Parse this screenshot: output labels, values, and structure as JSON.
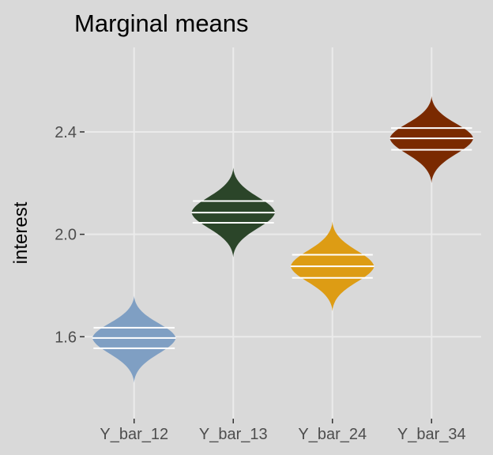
{
  "chart_data": {
    "type": "violin",
    "title": "Marginal means",
    "xlabel": "",
    "ylabel": "interest",
    "ylim": [
      1.28,
      2.73
    ],
    "y_ticks": [
      1.6,
      2.0,
      2.4
    ],
    "y_tick_labels": [
      "1.6",
      "2.0",
      "2.4"
    ],
    "grid": true,
    "legend": "none",
    "categories": [
      "Y_bar_12",
      "Y_bar_13",
      "Y_bar_24",
      "Y_bar_34"
    ],
    "series": [
      {
        "category": "Y_bar_12",
        "center": 1.595,
        "quantiles": [
          1.555,
          1.595,
          1.635
        ],
        "min": 1.42,
        "max": 1.76,
        "color": "#7f9fc3"
      },
      {
        "category": "Y_bar_13",
        "center": 2.085,
        "quantiles": [
          2.045,
          2.085,
          2.13
        ],
        "min": 1.91,
        "max": 2.26,
        "color": "#2b4529"
      },
      {
        "category": "Y_bar_24",
        "center": 1.875,
        "quantiles": [
          1.83,
          1.875,
          1.92
        ],
        "min": 1.7,
        "max": 2.05,
        "color": "#dd9c14"
      },
      {
        "category": "Y_bar_34",
        "center": 2.375,
        "quantiles": [
          2.33,
          2.375,
          2.415
        ],
        "min": 2.2,
        "max": 2.54,
        "color": "#7a2a00"
      }
    ]
  }
}
